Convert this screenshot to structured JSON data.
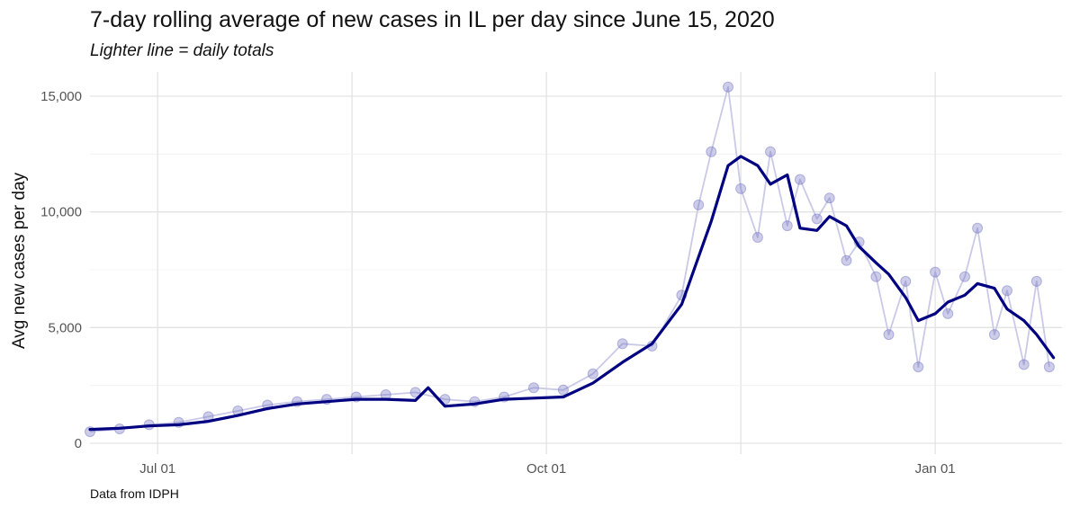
{
  "chart_data": {
    "type": "line",
    "title": "7-day rolling average of new cases in IL per day since June 15, 2020",
    "subtitle": "Lighter line = daily totals",
    "xlabel": "",
    "ylabel": "Avg new cases per day",
    "caption": "Data from IDPH",
    "x_range": [
      "2020-06-15",
      "2021-01-31"
    ],
    "ylim": [
      0,
      15500
    ],
    "x_ticks": [
      {
        "date": "2020-07-01",
        "label": "Jul 01"
      },
      {
        "date": "2020-10-01",
        "label": "Oct 01"
      },
      {
        "date": "2021-01-01",
        "label": "Jan 01"
      }
    ],
    "y_ticks": [
      {
        "value": 0,
        "label": "0"
      },
      {
        "value": 5000,
        "label": "5,000"
      },
      {
        "value": 10000,
        "label": "10,000"
      },
      {
        "value": 15000,
        "label": "15,000"
      }
    ],
    "grid": true,
    "legend": "none",
    "colors": {
      "daily": "#6f6fc0",
      "daily_line": "#c9c9e8",
      "average": "#000080",
      "grid": "#e3e3e3"
    },
    "series": [
      {
        "style": "points with thin light line",
        "x": [
          "2020-06-15",
          "2020-06-22",
          "2020-06-29",
          "2020-07-06",
          "2020-07-13",
          "2020-07-20",
          "2020-07-27",
          "2020-08-03",
          "2020-08-10",
          "2020-08-17",
          "2020-08-24",
          "2020-08-31",
          "2020-09-07",
          "2020-09-14",
          "2020-09-21",
          "2020-09-28",
          "2020-10-05",
          "2020-10-12",
          "2020-10-19",
          "2020-10-26",
          "2020-11-02",
          "2020-11-06",
          "2020-11-09",
          "2020-11-13",
          "2020-11-16",
          "2020-11-20",
          "2020-11-23",
          "2020-11-27",
          "2020-11-30",
          "2020-12-04",
          "2020-12-07",
          "2020-12-11",
          "2020-12-14",
          "2020-12-18",
          "2020-12-21",
          "2020-12-25",
          "2020-12-28",
          "2021-01-01",
          "2021-01-04",
          "2021-01-08",
          "2021-01-11",
          "2021-01-15",
          "2021-01-18",
          "2021-01-22",
          "2021-01-25",
          "2021-01-28"
        ],
        "values": [
          500,
          620,
          800,
          900,
          1150,
          1400,
          1650,
          1800,
          1900,
          2000,
          2100,
          2200,
          1900,
          1800,
          2000,
          2400,
          2300,
          3000,
          4300,
          4200,
          6400,
          10300,
          12600,
          15400,
          11000,
          8900,
          12600,
          9400,
          11400,
          9700,
          10600,
          7900,
          8700,
          7200,
          4700,
          7000,
          3300,
          7400,
          5600,
          7200,
          9300,
          4700,
          6600,
          3400,
          7000,
          3300
        ]
      },
      {
        "name": "7-day rolling average",
        "style": "thick dark line",
        "x": [
          "2020-06-15",
          "2020-06-22",
          "2020-06-29",
          "2020-07-06",
          "2020-07-13",
          "2020-07-20",
          "2020-07-27",
          "2020-08-03",
          "2020-08-10",
          "2020-08-17",
          "2020-08-24",
          "2020-08-31",
          "2020-09-03",
          "2020-09-07",
          "2020-09-14",
          "2020-09-21",
          "2020-09-28",
          "2020-10-05",
          "2020-10-12",
          "2020-10-19",
          "2020-10-26",
          "2020-11-02",
          "2020-11-09",
          "2020-11-13",
          "2020-11-16",
          "2020-11-20",
          "2020-11-23",
          "2020-11-27",
          "2020-11-30",
          "2020-12-04",
          "2020-12-07",
          "2020-12-11",
          "2020-12-14",
          "2020-12-18",
          "2020-12-21",
          "2020-12-25",
          "2020-12-28",
          "2021-01-01",
          "2021-01-04",
          "2021-01-08",
          "2021-01-11",
          "2021-01-15",
          "2021-01-18",
          "2021-01-22",
          "2021-01-25",
          "2021-01-29"
        ],
        "values": [
          600,
          650,
          750,
          800,
          950,
          1200,
          1500,
          1700,
          1800,
          1900,
          1900,
          1850,
          2400,
          1600,
          1700,
          1900,
          1950,
          2000,
          2600,
          3500,
          4300,
          6000,
          9600,
          12000,
          12400,
          12000,
          11200,
          11600,
          9300,
          9200,
          9800,
          9400,
          8500,
          7800,
          7300,
          6300,
          5300,
          5600,
          6100,
          6400,
          6900,
          6700,
          5800,
          5300,
          4700,
          3700
        ]
      }
    ]
  }
}
